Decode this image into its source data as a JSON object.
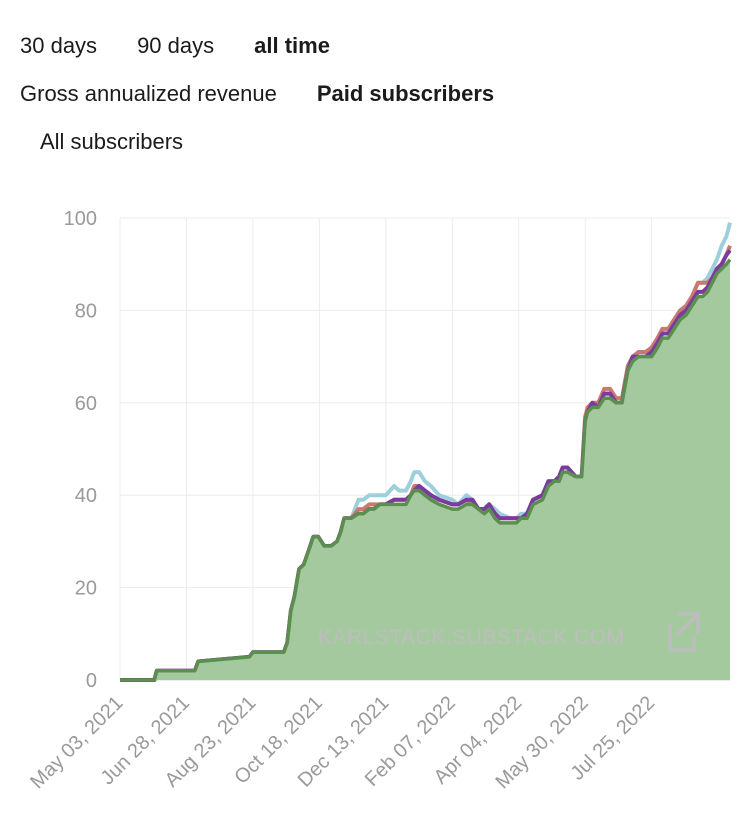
{
  "range_tabs": [
    {
      "label": "30 days",
      "active": false
    },
    {
      "label": "90 days",
      "active": false
    },
    {
      "label": "all time",
      "active": true
    }
  ],
  "metric_tabs": [
    {
      "label": "Gross annualized revenue",
      "active": false
    },
    {
      "label": "Paid subscribers",
      "active": true
    },
    {
      "label": "All subscribers",
      "active": false
    }
  ],
  "chart_data": {
    "type": "area",
    "ylim": [
      0,
      100
    ],
    "yticks": [
      0,
      20,
      40,
      60,
      80,
      100
    ],
    "xlim": [
      "2021-05-03",
      "2022-09-29"
    ],
    "xticks": [
      "May 03, 2021",
      "Jun 28, 2021",
      "Aug 23, 2021",
      "Oct 18, 2021",
      "Dec 13, 2021",
      "Feb 07, 2022",
      "Apr 04, 2022",
      "May 30, 2022",
      "Jul 25, 2022"
    ],
    "grid": true,
    "watermark": "KARLSTACK.SUBSTACK.COM",
    "colors": {
      "green": "#5a8f4e",
      "green_fill": "#a5c99e",
      "purple": "#7b3aa0",
      "red": "#c97a6c",
      "blue": "#9ecfdc"
    },
    "series": [
      {
        "color_key": "blue",
        "x": [
          "2021-05-03",
          "2021-06-01",
          "2021-06-03",
          "2021-06-15",
          "2021-06-17",
          "2021-07-05",
          "2021-07-08",
          "2021-08-20",
          "2021-08-23",
          "2021-09-18",
          "2021-09-21",
          "2021-09-24",
          "2021-09-27",
          "2021-10-01",
          "2021-10-05",
          "2021-10-09",
          "2021-10-13",
          "2021-10-17",
          "2021-10-22",
          "2021-10-28",
          "2021-11-02",
          "2021-11-05",
          "2021-11-08",
          "2021-11-14",
          "2021-11-20",
          "2021-11-24",
          "2021-11-29",
          "2021-12-03",
          "2021-12-08",
          "2021-12-13",
          "2021-12-20",
          "2021-12-24",
          "2021-12-30",
          "2022-01-03",
          "2022-01-06",
          "2022-01-10",
          "2022-01-15",
          "2022-01-20",
          "2022-01-27",
          "2022-02-07",
          "2022-02-12",
          "2022-02-19",
          "2022-02-24",
          "2022-03-01",
          "2022-03-06",
          "2022-03-10",
          "2022-03-15",
          "2022-03-19",
          "2022-03-28",
          "2022-04-02",
          "2022-04-06",
          "2022-04-11",
          "2022-04-16",
          "2022-04-24",
          "2022-04-29",
          "2022-05-04",
          "2022-05-08",
          "2022-05-11",
          "2022-05-15",
          "2022-05-22",
          "2022-05-27",
          "2022-05-30",
          "2022-06-01",
          "2022-06-05",
          "2022-06-10",
          "2022-06-15",
          "2022-06-20",
          "2022-06-25",
          "2022-06-30",
          "2022-07-05",
          "2022-07-09",
          "2022-07-14",
          "2022-07-20",
          "2022-07-25",
          "2022-07-30",
          "2022-08-03",
          "2022-08-08",
          "2022-08-13",
          "2022-08-18",
          "2022-08-23",
          "2022-08-28",
          "2022-09-02",
          "2022-09-06",
          "2022-09-10",
          "2022-09-14",
          "2022-09-18",
          "2022-09-22",
          "2022-09-26",
          "2022-09-29"
        ],
        "y": [
          0,
          0,
          2,
          2,
          2,
          2,
          4,
          5,
          6,
          6,
          8,
          15,
          18,
          24,
          25,
          28,
          31,
          31,
          29,
          29,
          30,
          32,
          35,
          35,
          39,
          39,
          40,
          40,
          40,
          40,
          42,
          41,
          41,
          43,
          45,
          45,
          43,
          42,
          40,
          39,
          38,
          40,
          39,
          37,
          37,
          38,
          37,
          36,
          35,
          35,
          36,
          36,
          39,
          40,
          43,
          43,
          44,
          46,
          46,
          44,
          44,
          57,
          58,
          60,
          59,
          62,
          62,
          61,
          61,
          68,
          70,
          71,
          71,
          72,
          74,
          76,
          76,
          78,
          80,
          81,
          83,
          86,
          86,
          87,
          89,
          91,
          94,
          96,
          99
        ]
      },
      {
        "color_key": "red",
        "x": [
          "2021-05-03",
          "2021-06-01",
          "2021-06-03",
          "2021-06-15",
          "2021-06-17",
          "2021-07-05",
          "2021-07-08",
          "2021-08-20",
          "2021-08-23",
          "2021-09-18",
          "2021-09-21",
          "2021-09-24",
          "2021-09-27",
          "2021-10-01",
          "2021-10-05",
          "2021-10-09",
          "2021-10-13",
          "2021-10-17",
          "2021-10-22",
          "2021-10-28",
          "2021-11-02",
          "2021-11-05",
          "2021-11-08",
          "2021-11-14",
          "2021-11-20",
          "2021-11-24",
          "2021-11-29",
          "2021-12-03",
          "2021-12-08",
          "2021-12-13",
          "2021-12-20",
          "2021-12-24",
          "2021-12-30",
          "2022-01-03",
          "2022-01-06",
          "2022-01-10",
          "2022-01-15",
          "2022-01-20",
          "2022-01-27",
          "2022-02-07",
          "2022-02-12",
          "2022-02-19",
          "2022-02-24",
          "2022-03-01",
          "2022-03-06",
          "2022-03-10",
          "2022-03-15",
          "2022-03-19",
          "2022-03-28",
          "2022-04-02",
          "2022-04-06",
          "2022-04-11",
          "2022-04-16",
          "2022-04-24",
          "2022-04-29",
          "2022-05-04",
          "2022-05-08",
          "2022-05-11",
          "2022-05-15",
          "2022-05-22",
          "2022-05-27",
          "2022-05-30",
          "2022-06-01",
          "2022-06-05",
          "2022-06-10",
          "2022-06-15",
          "2022-06-20",
          "2022-06-25",
          "2022-06-30",
          "2022-07-05",
          "2022-07-09",
          "2022-07-14",
          "2022-07-20",
          "2022-07-25",
          "2022-07-30",
          "2022-08-03",
          "2022-08-08",
          "2022-08-13",
          "2022-08-18",
          "2022-08-23",
          "2022-08-28",
          "2022-09-02",
          "2022-09-06",
          "2022-09-10",
          "2022-09-14",
          "2022-09-18",
          "2022-09-22",
          "2022-09-26",
          "2022-09-29"
        ],
        "y": [
          0,
          0,
          2,
          2,
          2,
          2,
          4,
          5,
          6,
          6,
          8,
          15,
          18,
          24,
          25,
          28,
          31,
          31,
          29,
          29,
          30,
          32,
          35,
          35,
          37,
          37,
          38,
          38,
          38,
          38,
          39,
          39,
          39,
          40,
          42,
          42,
          41,
          40,
          39,
          38,
          38,
          39,
          38,
          37,
          37,
          38,
          36,
          35,
          35,
          35,
          35,
          36,
          39,
          40,
          43,
          43,
          44,
          46,
          46,
          44,
          44,
          57,
          59,
          60,
          60,
          63,
          63,
          61,
          61,
          68,
          70,
          71,
          71,
          72,
          74,
          76,
          76,
          78,
          80,
          81,
          83,
          86,
          86,
          86,
          87,
          89,
          90,
          92,
          94
        ]
      },
      {
        "color_key": "purple",
        "x": [
          "2021-05-03",
          "2021-06-01",
          "2021-06-03",
          "2021-06-15",
          "2021-06-17",
          "2021-07-05",
          "2021-07-08",
          "2021-08-20",
          "2021-08-23",
          "2021-09-18",
          "2021-09-21",
          "2021-09-24",
          "2021-09-27",
          "2021-10-01",
          "2021-10-05",
          "2021-10-09",
          "2021-10-13",
          "2021-10-17",
          "2021-10-22",
          "2021-10-28",
          "2021-11-02",
          "2021-11-05",
          "2021-11-08",
          "2021-11-14",
          "2021-11-20",
          "2021-11-24",
          "2021-11-29",
          "2021-12-03",
          "2021-12-08",
          "2021-12-13",
          "2021-12-20",
          "2021-12-24",
          "2021-12-30",
          "2022-01-03",
          "2022-01-06",
          "2022-01-10",
          "2022-01-15",
          "2022-01-20",
          "2022-01-27",
          "2022-02-07",
          "2022-02-12",
          "2022-02-19",
          "2022-02-24",
          "2022-03-01",
          "2022-03-06",
          "2022-03-10",
          "2022-03-15",
          "2022-03-19",
          "2022-03-28",
          "2022-04-02",
          "2022-04-06",
          "2022-04-11",
          "2022-04-16",
          "2022-04-24",
          "2022-04-29",
          "2022-05-04",
          "2022-05-08",
          "2022-05-11",
          "2022-05-15",
          "2022-05-22",
          "2022-05-27",
          "2022-05-30",
          "2022-06-01",
          "2022-06-05",
          "2022-06-10",
          "2022-06-15",
          "2022-06-20",
          "2022-06-25",
          "2022-06-30",
          "2022-07-05",
          "2022-07-09",
          "2022-07-14",
          "2022-07-20",
          "2022-07-25",
          "2022-07-30",
          "2022-08-03",
          "2022-08-08",
          "2022-08-13",
          "2022-08-18",
          "2022-08-23",
          "2022-08-28",
          "2022-09-02",
          "2022-09-06",
          "2022-09-10",
          "2022-09-14",
          "2022-09-18",
          "2022-09-22",
          "2022-09-26",
          "2022-09-29"
        ],
        "y": [
          0,
          0,
          2,
          2,
          2,
          2,
          4,
          5,
          6,
          6,
          8,
          15,
          18,
          24,
          25,
          28,
          31,
          31,
          29,
          29,
          30,
          32,
          35,
          35,
          36,
          36,
          37,
          37,
          38,
          38,
          39,
          39,
          39,
          40,
          41,
          42,
          41,
          40,
          39,
          38,
          38,
          39,
          39,
          37,
          37,
          38,
          36,
          35,
          35,
          35,
          35,
          36,
          39,
          40,
          43,
          43,
          44,
          46,
          46,
          44,
          44,
          56,
          58,
          60,
          59,
          62,
          62,
          60,
          60,
          67,
          70,
          70,
          70,
          71,
          73,
          75,
          75,
          77,
          79,
          80,
          82,
          84,
          84,
          85,
          87,
          89,
          90,
          92,
          93
        ]
      },
      {
        "color_key": "green",
        "fill": true,
        "x": [
          "2021-05-03",
          "2021-06-01",
          "2021-06-03",
          "2021-06-15",
          "2021-06-17",
          "2021-07-05",
          "2021-07-08",
          "2021-08-20",
          "2021-08-23",
          "2021-09-18",
          "2021-09-21",
          "2021-09-24",
          "2021-09-27",
          "2021-10-01",
          "2021-10-05",
          "2021-10-09",
          "2021-10-13",
          "2021-10-17",
          "2021-10-22",
          "2021-10-28",
          "2021-11-02",
          "2021-11-05",
          "2021-11-08",
          "2021-11-14",
          "2021-11-20",
          "2021-11-24",
          "2021-11-29",
          "2021-12-03",
          "2021-12-08",
          "2021-12-13",
          "2021-12-20",
          "2021-12-24",
          "2021-12-30",
          "2022-01-03",
          "2022-01-06",
          "2022-01-10",
          "2022-01-15",
          "2022-01-20",
          "2022-01-27",
          "2022-02-07",
          "2022-02-12",
          "2022-02-19",
          "2022-02-24",
          "2022-03-01",
          "2022-03-06",
          "2022-03-10",
          "2022-03-15",
          "2022-03-19",
          "2022-03-28",
          "2022-04-02",
          "2022-04-06",
          "2022-04-11",
          "2022-04-16",
          "2022-04-24",
          "2022-04-29",
          "2022-05-04",
          "2022-05-08",
          "2022-05-11",
          "2022-05-15",
          "2022-05-22",
          "2022-05-27",
          "2022-05-30",
          "2022-06-01",
          "2022-06-05",
          "2022-06-10",
          "2022-06-15",
          "2022-06-20",
          "2022-06-25",
          "2022-06-30",
          "2022-07-05",
          "2022-07-09",
          "2022-07-14",
          "2022-07-20",
          "2022-07-25",
          "2022-07-30",
          "2022-08-03",
          "2022-08-08",
          "2022-08-13",
          "2022-08-18",
          "2022-08-23",
          "2022-08-28",
          "2022-09-02",
          "2022-09-06",
          "2022-09-10",
          "2022-09-14",
          "2022-09-18",
          "2022-09-22",
          "2022-09-26",
          "2022-09-29"
        ],
        "y": [
          0,
          0,
          2,
          2,
          2,
          2,
          4,
          5,
          6,
          6,
          8,
          15,
          18,
          24,
          25,
          28,
          31,
          31,
          29,
          29,
          30,
          32,
          35,
          35,
          36,
          36,
          37,
          37,
          38,
          38,
          38,
          38,
          38,
          40,
          41,
          41,
          40,
          39,
          38,
          37,
          37,
          38,
          38,
          37,
          36,
          37,
          35,
          34,
          34,
          34,
          35,
          35,
          38,
          39,
          42,
          43,
          43,
          45,
          45,
          44,
          44,
          56,
          58,
          59,
          59,
          61,
          61,
          60,
          60,
          67,
          69,
          70,
          70,
          70,
          72,
          74,
          74,
          76,
          78,
          79,
          81,
          83,
          83,
          84,
          86,
          88,
          89,
          90,
          91
        ]
      }
    ]
  }
}
